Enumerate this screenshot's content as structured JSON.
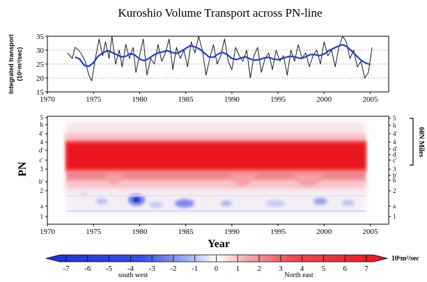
{
  "title": "Kuroshio Volume Transport across PN-line",
  "colors": {
    "raw_series": "#1a1a1a",
    "smooth_series": "#1f3fc8",
    "grid": "#9a9a9a",
    "negative": "#1f2fd8",
    "positive": "#e8141e",
    "neutral": "#ffffff"
  },
  "chart_data": [
    {
      "type": "line",
      "ylabel": "Integrated transport",
      "ylabel_unit": "(10⁶m³/sec)",
      "xlim": [
        1970,
        2007
      ],
      "ylim": [
        15,
        35
      ],
      "x_ticks": [
        1970,
        1975,
        1980,
        1985,
        1990,
        1995,
        2000,
        2005
      ],
      "y_ticks": [
        15,
        20,
        25,
        30,
        35
      ],
      "grid": true,
      "series": [
        {
          "style": "thin-black",
          "x": [
            1972.2,
            1972.7,
            1973.0,
            1973.4,
            1973.8,
            1974.1,
            1974.5,
            1974.8,
            1975.2,
            1975.6,
            1976.0,
            1976.3,
            1976.7,
            1977.0,
            1977.4,
            1977.8,
            1978.1,
            1978.5,
            1978.9,
            1979.3,
            1979.6,
            1980.0,
            1980.4,
            1980.8,
            1981.2,
            1981.6,
            1982.0,
            1982.4,
            1982.8,
            1983.2,
            1983.6,
            1984.0,
            1984.4,
            1984.8,
            1985.2,
            1985.6,
            1986.0,
            1986.4,
            1986.8,
            1987.2,
            1987.6,
            1988.0,
            1988.4,
            1988.8,
            1989.2,
            1989.6,
            1990.0,
            1990.4,
            1990.8,
            1991.2,
            1991.6,
            1992.0,
            1992.4,
            1992.8,
            1993.2,
            1993.6,
            1994.0,
            1994.4,
            1994.8,
            1995.2,
            1995.6,
            1996.0,
            1996.4,
            1996.8,
            1997.2,
            1997.6,
            1998.0,
            1998.4,
            1998.8,
            1999.2,
            1999.6,
            2000.0,
            2000.4,
            2000.8,
            2001.2,
            2001.6,
            2002.0,
            2002.4,
            2002.8,
            2003.2,
            2003.6,
            2004.0,
            2004.4,
            2004.8,
            2005.2
          ],
          "y": [
            29,
            27,
            31,
            30,
            28,
            26,
            21,
            19,
            27,
            34,
            28,
            33,
            27,
            35,
            25,
            30,
            24,
            32,
            27,
            31,
            22,
            28,
            34,
            21,
            27,
            25,
            32,
            26,
            29,
            34,
            23,
            31,
            27,
            30,
            24,
            33,
            29,
            35,
            30,
            21,
            27,
            32,
            25,
            28,
            34,
            26,
            23,
            31,
            28,
            26,
            30,
            20,
            28,
            31,
            22,
            27,
            29,
            23,
            30,
            26,
            28,
            21,
            30,
            26,
            32,
            27,
            29,
            24,
            28,
            30,
            25,
            33,
            28,
            30,
            24,
            31,
            35,
            33,
            27,
            30,
            24,
            26,
            20,
            22,
            31
          ]
        },
        {
          "style": "thick-blue",
          "x": [
            1973.0,
            1973.5,
            1974.0,
            1974.5,
            1975.0,
            1975.5,
            1976.0,
            1976.5,
            1977.0,
            1977.5,
            1978.0,
            1978.5,
            1979.0,
            1979.5,
            1980.0,
            1980.5,
            1981.0,
            1981.5,
            1982.0,
            1982.5,
            1983.0,
            1983.5,
            1984.0,
            1984.5,
            1985.0,
            1985.5,
            1986.0,
            1986.5,
            1987.0,
            1987.5,
            1988.0,
            1988.5,
            1989.0,
            1989.5,
            1990.0,
            1990.5,
            1991.0,
            1991.5,
            1992.0,
            1992.5,
            1993.0,
            1993.5,
            1994.0,
            1994.5,
            1995.0,
            1995.5,
            1996.0,
            1996.5,
            1997.0,
            1997.5,
            1998.0,
            1998.5,
            1999.0,
            1999.5,
            2000.0,
            2000.5,
            2001.0,
            2001.5,
            2002.0,
            2002.5,
            2003.0,
            2003.5,
            2004.0,
            2004.5,
            2005.0
          ],
          "y": [
            27.5,
            26.8,
            24.5,
            24.2,
            25.5,
            27.8,
            29.0,
            29.8,
            29.2,
            28.4,
            27.6,
            27.8,
            28.8,
            28.2,
            26.8,
            26.2,
            27.0,
            28.2,
            29.0,
            29.4,
            29.8,
            29.2,
            28.8,
            29.6,
            30.6,
            31.6,
            31.2,
            30.4,
            29.0,
            27.6,
            27.4,
            28.6,
            29.2,
            28.4,
            27.0,
            26.6,
            27.2,
            27.6,
            26.8,
            26.4,
            26.6,
            27.2,
            27.4,
            26.8,
            26.6,
            27.0,
            27.6,
            27.8,
            27.4,
            27.0,
            27.6,
            28.4,
            28.4,
            28.0,
            28.6,
            29.8,
            30.6,
            31.4,
            32.0,
            31.2,
            29.6,
            28.0,
            26.4,
            25.4,
            24.8
          ]
        }
      ]
    },
    {
      "type": "heatmap",
      "xlabel": "Year",
      "ylabel": "PN",
      "xlim": [
        1970,
        2007
      ],
      "x_ticks": [
        1970,
        1975,
        1980,
        1985,
        1990,
        1995,
        2000,
        2005
      ],
      "y_ticks_left": [
        "1",
        "a",
        "2",
        "b'",
        "3",
        "c'",
        "d'",
        "4",
        "4'",
        "h",
        "5"
      ],
      "y_ticks_right": [
        "1",
        "a",
        "2",
        "b",
        "b'",
        "3",
        "c'",
        "d",
        "d'",
        "4",
        "4'",
        "h",
        "5"
      ],
      "bracket_label": "60N Miles",
      "colorbar": {
        "ticks": [
          "-7",
          "-6",
          "-5",
          "-4",
          "-3",
          "-2",
          "-1",
          "0",
          "1",
          "2",
          "3",
          "4",
          "5",
          "6",
          "7"
        ],
        "unit": "10⁶m³/sec",
        "negative_label": "south west",
        "positive_label": "North east"
      }
    }
  ]
}
